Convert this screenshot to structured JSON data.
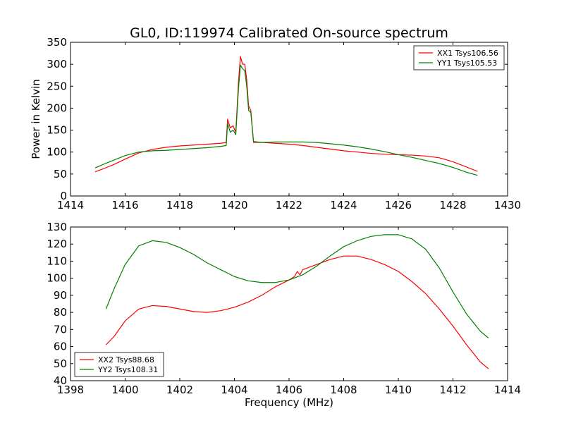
{
  "figure": {
    "title": "GL0, ID:119974 Calibrated On-source spectrum"
  },
  "colors": {
    "xx": "#ff0000",
    "yy": "#008000",
    "axes": "#000000",
    "background": "#ffffff"
  },
  "chart_data": [
    {
      "type": "line",
      "title": "GL0, ID:119974 Calibrated On-source spectrum",
      "xlabel": "",
      "ylabel": "Power in Kelvin",
      "xlim": [
        1414,
        1430
      ],
      "ylim": [
        0,
        350
      ],
      "xticks": [
        "1414",
        "1416",
        "1418",
        "1420",
        "1422",
        "1424",
        "1426",
        "1428",
        "1430"
      ],
      "yticks": [
        "0",
        "50",
        "100",
        "150",
        "200",
        "250",
        "300",
        "350"
      ],
      "grid": false,
      "legend_position": "top-right",
      "series": [
        {
          "name": "XX1 Tsys106.56",
          "color": "#ff0000",
          "x": [
            1414.9,
            1415.2,
            1415.6,
            1416.0,
            1416.5,
            1417.0,
            1417.5,
            1418.0,
            1418.5,
            1419.0,
            1419.5,
            1419.7,
            1419.75,
            1419.85,
            1419.95,
            1420.05,
            1420.15,
            1420.22,
            1420.3,
            1420.38,
            1420.45,
            1420.52,
            1420.6,
            1420.7,
            1421.0,
            1421.5,
            1422.0,
            1422.5,
            1423.0,
            1423.5,
            1424.0,
            1424.5,
            1425.0,
            1425.5,
            1426.0,
            1426.5,
            1427.0,
            1427.5,
            1428.0,
            1428.5,
            1428.9
          ],
          "y": [
            55,
            62,
            72,
            84,
            98,
            106,
            111,
            114,
            116,
            118,
            120,
            122,
            175,
            155,
            160,
            145,
            260,
            318,
            300,
            300,
            265,
            205,
            195,
            122,
            122,
            120,
            118,
            115,
            111,
            107,
            103,
            100,
            97,
            95,
            94,
            93,
            91,
            87,
            78,
            66,
            56
          ]
        },
        {
          "name": "YY1 Tsys105.53",
          "color": "#008000",
          "x": [
            1414.9,
            1415.2,
            1415.6,
            1416.0,
            1416.5,
            1417.0,
            1417.5,
            1418.0,
            1418.5,
            1419.0,
            1419.5,
            1419.7,
            1419.75,
            1419.85,
            1419.95,
            1420.05,
            1420.15,
            1420.22,
            1420.3,
            1420.38,
            1420.45,
            1420.52,
            1420.6,
            1420.7,
            1421.0,
            1421.5,
            1422.0,
            1422.5,
            1423.0,
            1423.5,
            1424.0,
            1424.5,
            1425.0,
            1425.5,
            1426.0,
            1426.5,
            1427.0,
            1427.5,
            1428.0,
            1428.5,
            1428.9
          ],
          "y": [
            64,
            72,
            82,
            92,
            100,
            103,
            104,
            106,
            108,
            110,
            113,
            115,
            165,
            145,
            150,
            140,
            245,
            298,
            290,
            285,
            250,
            195,
            190,
            124,
            122,
            123,
            123,
            123,
            122,
            119,
            116,
            112,
            107,
            101,
            94,
            88,
            81,
            74,
            65,
            54,
            47
          ]
        }
      ]
    },
    {
      "type": "line",
      "title": "",
      "xlabel": "Frequency (MHz)",
      "ylabel": "",
      "xlim": [
        1398,
        1414
      ],
      "ylim": [
        40,
        130
      ],
      "xticks": [
        "1398",
        "1400",
        "1402",
        "1404",
        "1406",
        "1408",
        "1410",
        "1412",
        "1414"
      ],
      "yticks": [
        "40",
        "50",
        "60",
        "70",
        "80",
        "90",
        "100",
        "110",
        "120",
        "130"
      ],
      "grid": false,
      "legend_position": "bottom-left",
      "series": [
        {
          "name": "XX2 Tsys88.68",
          "color": "#ff0000",
          "x": [
            1399.3,
            1399.6,
            1400.0,
            1400.5,
            1401.0,
            1401.5,
            1402.0,
            1402.5,
            1403.0,
            1403.5,
            1404.0,
            1404.5,
            1405.0,
            1405.5,
            1406.0,
            1406.2,
            1406.3,
            1406.4,
            1406.5,
            1407.0,
            1407.5,
            1408.0,
            1408.5,
            1409.0,
            1409.5,
            1410.0,
            1410.5,
            1411.0,
            1411.5,
            1412.0,
            1412.5,
            1413.0,
            1413.3
          ],
          "y": [
            61,
            66,
            75,
            82,
            84,
            83.5,
            82,
            80.5,
            80,
            81,
            83,
            86,
            90,
            95,
            99,
            101,
            104,
            102,
            105,
            108,
            111,
            113,
            113,
            111,
            108,
            104,
            98,
            91,
            82,
            72,
            61,
            51,
            47
          ]
        },
        {
          "name": "YY2 Tsys108.31",
          "color": "#008000",
          "x": [
            1399.3,
            1399.6,
            1400.0,
            1400.5,
            1401.0,
            1401.5,
            1402.0,
            1402.5,
            1403.0,
            1403.5,
            1404.0,
            1404.5,
            1405.0,
            1405.5,
            1406.0,
            1406.5,
            1407.0,
            1407.5,
            1408.0,
            1408.5,
            1409.0,
            1409.5,
            1410.0,
            1410.5,
            1411.0,
            1411.5,
            1412.0,
            1412.5,
            1413.0,
            1413.3
          ],
          "y": [
            82,
            94,
            108,
            119,
            122,
            121,
            118,
            114,
            109,
            105,
            101,
            98.5,
            97.5,
            97.5,
            99,
            102,
            107,
            113,
            118.5,
            122,
            124.5,
            125.5,
            125.5,
            123,
            117,
            106,
            92,
            79,
            69,
            65
          ]
        }
      ]
    }
  ]
}
